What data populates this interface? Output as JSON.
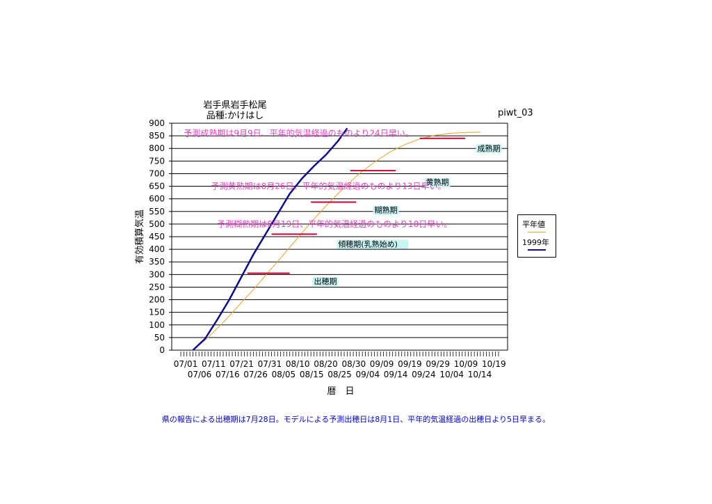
{
  "chart_data": {
    "type": "line",
    "title": "岩手県岩手松尾",
    "subtitle": "品種:かけはし",
    "chart_id": "piwt_03",
    "ylabel": "有効積算気温",
    "xlabel": "暦　日",
    "ylim": [
      0,
      900
    ],
    "yticks": [
      0,
      50,
      100,
      150,
      200,
      250,
      300,
      350,
      400,
      450,
      500,
      550,
      600,
      650,
      700,
      750,
      800,
      850,
      900
    ],
    "x_start": "07/01",
    "x_end": "10/20",
    "xtick_labels_top": [
      "07/01",
      "07/11",
      "07/21",
      "07/31",
      "08/10",
      "08/20",
      "08/30",
      "09/09",
      "09/19",
      "09/29",
      "10/09",
      "10/19"
    ],
    "xtick_labels_bottom": [
      "07/06",
      "07/16",
      "07/26",
      "08/05",
      "08/15",
      "08/25",
      "09/04",
      "09/14",
      "09/24",
      "10/04",
      "10/14"
    ],
    "grid": true,
    "legend_position": "right",
    "series": [
      {
        "name": "平年値",
        "color": "#e8a020",
        "points": [
          [
            "07/08",
            0
          ],
          [
            "07/13",
            50
          ],
          [
            "07/18",
            110
          ],
          [
            "07/23",
            175
          ],
          [
            "07/28",
            240
          ],
          [
            "08/02",
            310
          ],
          [
            "08/07",
            380
          ],
          [
            "08/12",
            450
          ],
          [
            "08/17",
            520
          ],
          [
            "08/22",
            585
          ],
          [
            "08/27",
            645
          ],
          [
            "09/01",
            700
          ],
          [
            "09/06",
            745
          ],
          [
            "09/11",
            785
          ],
          [
            "09/16",
            815
          ],
          [
            "09/21",
            838
          ],
          [
            "09/26",
            852
          ],
          [
            "10/01",
            860
          ],
          [
            "10/06",
            863
          ],
          [
            "10/11",
            865
          ]
        ]
      },
      {
        "name": "1999年",
        "color": "#0a0a90",
        "points": [
          [
            "07/08",
            0
          ],
          [
            "07/12",
            45
          ],
          [
            "07/16",
            120
          ],
          [
            "07/20",
            200
          ],
          [
            "07/24",
            290
          ],
          [
            "07/28",
            380
          ],
          [
            "08/01",
            460
          ],
          [
            "08/05",
            540
          ],
          [
            "08/09",
            620
          ],
          [
            "08/13",
            680
          ],
          [
            "08/17",
            730
          ],
          [
            "08/21",
            775
          ],
          [
            "08/25",
            830
          ],
          [
            "08/28",
            880
          ]
        ]
      }
    ],
    "stage_bars": [
      {
        "start": "07/26",
        "end": "08/09",
        "y": 305
      },
      {
        "start": "08/03",
        "end": "08/18",
        "y": 460
      },
      {
        "start": "08/16",
        "end": "08/31",
        "y": 587
      },
      {
        "start": "08/29",
        "end": "09/13",
        "y": 712
      },
      {
        "start": "09/21",
        "end": "10/06",
        "y": 840
      }
    ],
    "stage_labels": [
      {
        "text": "出穂期",
        "x": "08/17",
        "y": 262
      },
      {
        "text": "傾穂期(乳熟始め)",
        "x": "08/25",
        "y": 410
      },
      {
        "text": "糊熟期",
        "x": "09/06",
        "y": 545
      },
      {
        "text": "黄熟期",
        "x": "09/23",
        "y": 655
      },
      {
        "text": "成熟期",
        "x": "10/10",
        "y": 790
      }
    ],
    "annotations": [
      {
        "text": "予測成熟期は9月9日、平年的気温経過のものより24日早い。",
        "x": "07/05",
        "y": 860
      },
      {
        "text": "予測黄熟期は8月26日、平年的気温経過のものより13日早い。",
        "x": "07/14",
        "y": 650
      },
      {
        "text": "予測糊熟期は8月19日、平年的気温経過のものより10日早い。",
        "x": "07/16",
        "y": 500
      }
    ]
  },
  "footnote": "県の報告による出穂期は7月28日。モデルによる予測出穂日は8月1日、平年的気温経過の出穂日より5日早まる。"
}
